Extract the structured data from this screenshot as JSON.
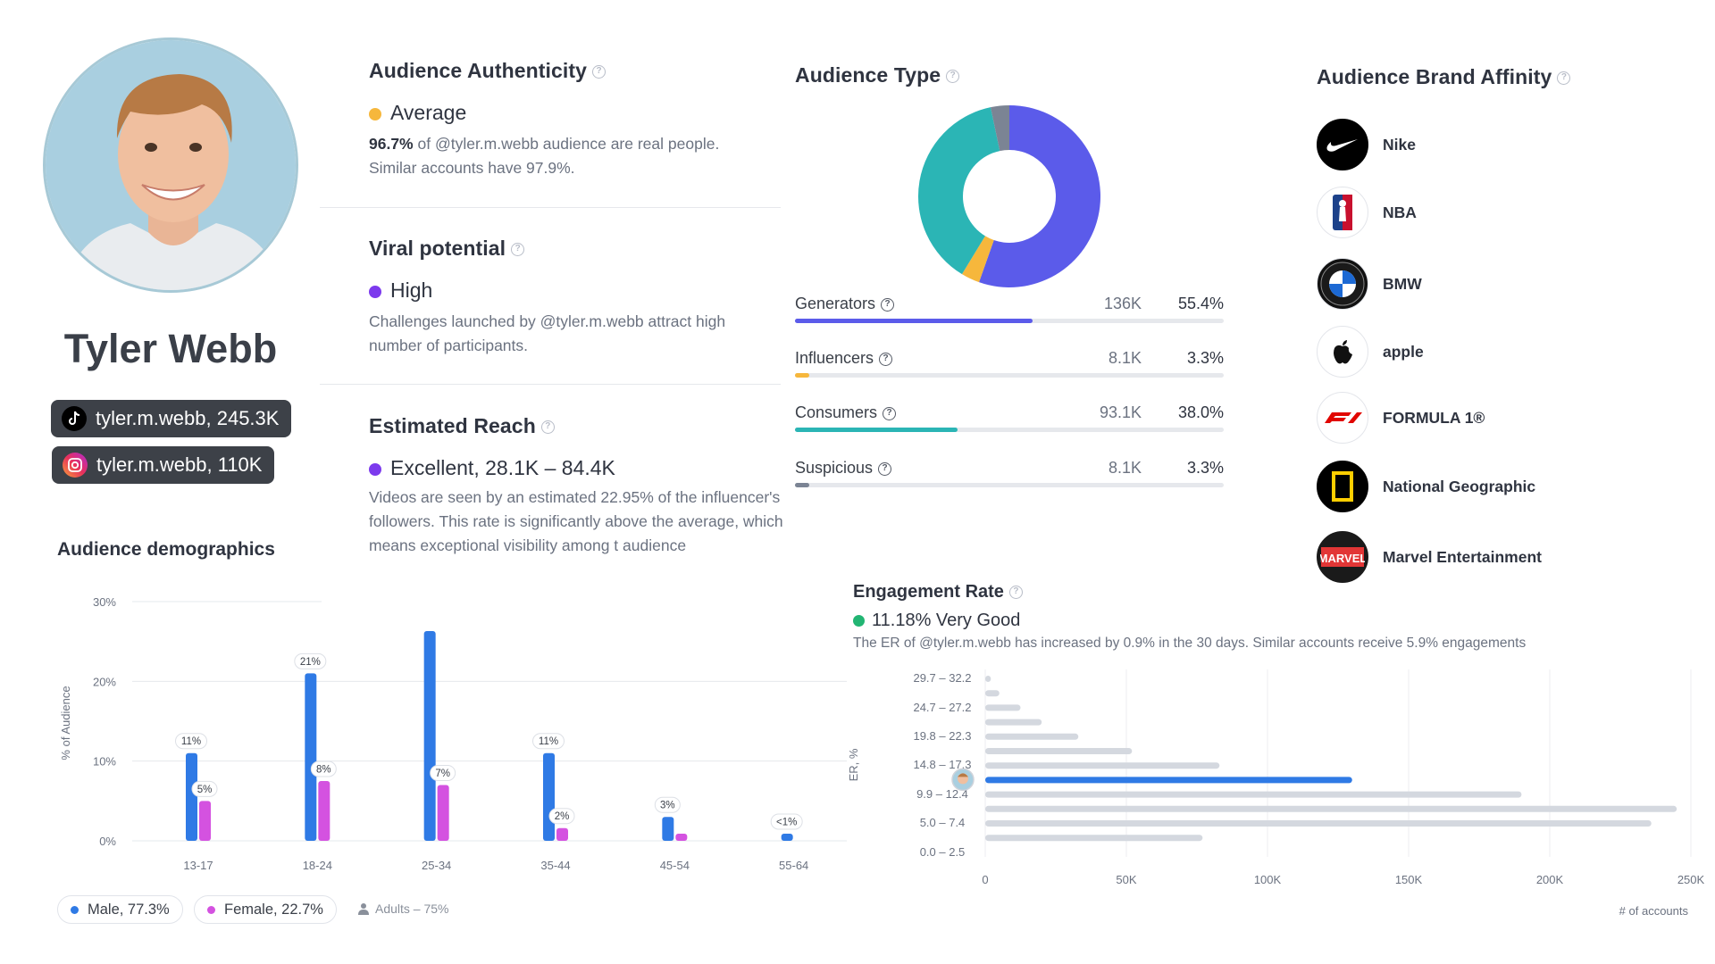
{
  "profile": {
    "name": "Tyler Webb",
    "tiktok": "tyler.m.webb,  245.3K",
    "instagram": "tyler.m.webb,  110K"
  },
  "authenticity": {
    "title": "Audience Authenticity",
    "status": "Average",
    "status_color": "#f6b73c",
    "line1_bold": "96.7%",
    "line1_rest": " of @tyler.m.webb audience are real people.",
    "line2": "Similar accounts have 97.9%."
  },
  "viral": {
    "title": "Viral potential",
    "status": "High",
    "status_color": "#7c3aed",
    "desc": "Challenges launched by @tyler.m.webb attract high number of participants."
  },
  "reach": {
    "title": "Estimated Reach",
    "status": "Excellent, 28.1K – 84.4K",
    "status_color": "#7c3aed",
    "desc": "Videos are seen by an estimated 22.95% of the influencer's followers. This rate is significantly above the average, which means exceptional visibility among t audience"
  },
  "audience_type": {
    "title": "Audience Type",
    "rows": [
      {
        "label": "Generators",
        "count": "136K",
        "pct": "55.4%",
        "value": 55.4,
        "color": "#5b5bea"
      },
      {
        "label": "Influencers",
        "count": "8.1K",
        "pct": "3.3%",
        "value": 3.3,
        "color": "#f6b73c"
      },
      {
        "label": "Consumers",
        "count": "93.1K",
        "pct": "38.0%",
        "value": 38.0,
        "color": "#2bb5b5"
      },
      {
        "label": "Suspicious",
        "count": "8.1K",
        "pct": "3.3%",
        "value": 3.3,
        "color": "#7b8494"
      }
    ]
  },
  "brands": {
    "title": "Audience Brand Affinity",
    "items": [
      {
        "name": "Nike",
        "icon": "nike-logo"
      },
      {
        "name": "NBA",
        "icon": "nba-logo"
      },
      {
        "name": "BMW",
        "icon": "bmw-logo"
      },
      {
        "name": "apple",
        "icon": "apple-logo"
      },
      {
        "name": "FORMULA 1®",
        "icon": "f1-logo"
      },
      {
        "name": "National Geographic",
        "icon": "natgeo-logo"
      },
      {
        "name": "Marvel Entertainment",
        "icon": "marvel-logo",
        "logo_text": "MARVEL"
      }
    ]
  },
  "demographics": {
    "title": "Audience demographics",
    "legend_male": "Male, 77.3%",
    "legend_female": "Female, 22.7%",
    "legend_adults": "Adults – 75%",
    "male_color": "#2f7ae5",
    "female_color": "#d452e0"
  },
  "engagement": {
    "title": "Engagement Rate",
    "status": "11.18% Very Good",
    "status_color": "#22b573",
    "desc": "The ER of @tyler.m.webb has increased by 0.9% in the 30 days. Similar accounts receive 5.9% engagements",
    "highlight_color": "#2f7ae5",
    "bar_color": "#d4d8df"
  },
  "chart_data": [
    {
      "type": "bar",
      "title": "Audience demographics",
      "ylabel": "% of Audience",
      "ylim": [
        0,
        30
      ],
      "yticks": [
        "0%",
        "10%",
        "20%",
        "30%"
      ],
      "categories": [
        "13-17",
        "18-24",
        "25-34",
        "35-44",
        "45-54",
        "55-64"
      ],
      "series": [
        {
          "name": "Male, 77.3%",
          "values": [
            11,
            21,
            26.3,
            11,
            3,
            0.9
          ],
          "labels": [
            "11%",
            "21%",
            "",
            "11%",
            "3%",
            "<1%"
          ]
        },
        {
          "name": "Female, 22.7%",
          "values": [
            5,
            7.5,
            7,
            1.6,
            0.9,
            0
          ],
          "labels": [
            "5%",
            "8%",
            "7%",
            "2%",
            "",
            ""
          ]
        }
      ]
    },
    {
      "type": "bar",
      "orientation": "horizontal",
      "title": "Engagement Rate",
      "ylabel": "ER, %",
      "xlabel": "# of accounts",
      "xlim": [
        0,
        250000
      ],
      "xticks": [
        "0",
        "50K",
        "100K",
        "150K",
        "200K",
        "250K"
      ],
      "tick_categories": [
        "29.7 – 32.2",
        "24.7 – 27.2",
        "19.8 – 22.3",
        "14.8 – 17.3",
        "9.9 – 12.4",
        "5.0 – 7.4",
        "0.0 – 2.5"
      ],
      "values": [
        2000,
        5000,
        12500,
        20000,
        33000,
        52000,
        83000,
        130000,
        190000,
        245000,
        236000,
        77000
      ],
      "highlight_index": 7
    }
  ]
}
